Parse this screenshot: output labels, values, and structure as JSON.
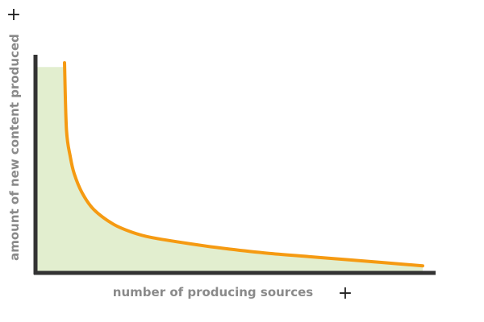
{
  "chart_data": {
    "type": "area",
    "title": "",
    "xlabel": "number of producing sources",
    "ylabel": "amount of new content produced",
    "axis_marker_x": "+",
    "axis_marker_y": "+",
    "xlim": [
      0,
      100
    ],
    "ylim": [
      0,
      100
    ],
    "grid": false,
    "legend": "none",
    "series": [
      {
        "x": [
          7.5,
          8,
          9,
          10,
          12,
          15,
          20,
          25,
          30,
          40,
          50,
          60,
          70,
          80,
          90,
          100
        ],
        "values": [
          100,
          68,
          55,
          47,
          38,
          30,
          23,
          19,
          16.5,
          13.5,
          11,
          9,
          7.5,
          6,
          4.5,
          3
        ]
      }
    ],
    "fill_region": {
      "x_start": 0,
      "flat_top": 98
    },
    "colors": {
      "line": "#f59a12",
      "fill": "#e2eecf",
      "axis": "#333333",
      "label": "#8a8a8a"
    }
  }
}
